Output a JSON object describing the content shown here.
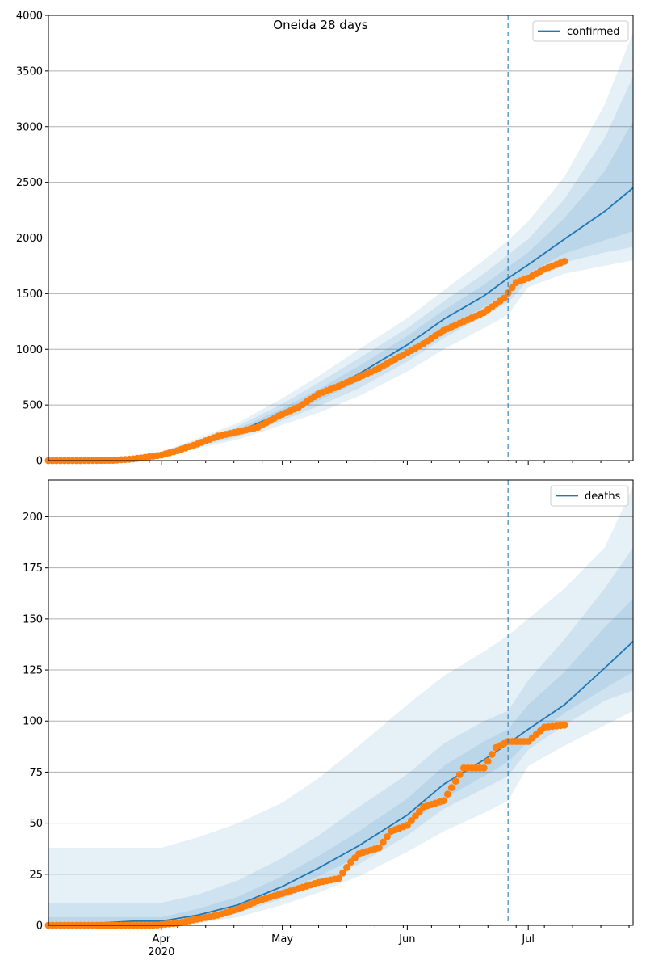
{
  "figure": {
    "title": "Oneida 28 days"
  },
  "colors": {
    "model_line": "#1f77b4",
    "observed": "#ff7f0e",
    "band": "#1f77b4",
    "grid": "#b0b0b0",
    "vline": "#1f77b4"
  },
  "xaxis": {
    "month_labels": [
      {
        "label": "Apr",
        "sub": "2020",
        "date": "2020-04-01"
      },
      {
        "label": "May",
        "sub": "",
        "date": "2020-05-01"
      },
      {
        "label": "Jun",
        "sub": "",
        "date": "2020-06-01"
      },
      {
        "label": "Jul",
        "sub": "",
        "date": "2020-07-01"
      }
    ]
  },
  "chart_data": [
    {
      "type": "line",
      "name": "confirmed-panel",
      "legend": "confirmed",
      "legend_position": "top-right",
      "grid": "y",
      "xlim": [
        "2020-03-04",
        "2020-07-27"
      ],
      "ylim": [
        0,
        4000
      ],
      "yticks": [
        "0",
        "500",
        "1000",
        "1500",
        "2000",
        "2500",
        "3000",
        "3500",
        "4000"
      ],
      "forecast_start": "2020-06-26",
      "model_x": [
        "2020-03-04",
        "2020-03-15",
        "2020-03-25",
        "2020-04-01",
        "2020-04-10",
        "2020-04-20",
        "2020-05-01",
        "2020-05-10",
        "2020-05-20",
        "2020-06-01",
        "2020-06-10",
        "2020-06-20",
        "2020-06-26",
        "2020-07-01",
        "2020-07-10",
        "2020-07-20",
        "2020-07-27"
      ],
      "model_y": [
        0,
        0,
        20,
        60,
        150,
        260,
        430,
        590,
        780,
        1040,
        1270,
        1480,
        1640,
        1760,
        1990,
        2240,
        2450
      ],
      "bands": [
        {
          "upper": [
            0,
            0,
            30,
            80,
            200,
            340,
            560,
            760,
            1000,
            1280,
            1530,
            1800,
            1980,
            2150,
            2550,
            3200,
            3850
          ],
          "lower": [
            0,
            0,
            10,
            40,
            110,
            190,
            320,
            430,
            580,
            800,
            1000,
            1190,
            1310,
            1560,
            1680,
            1750,
            1800
          ]
        },
        {
          "upper": [
            0,
            0,
            26,
            72,
            180,
            310,
            510,
            700,
            920,
            1190,
            1430,
            1680,
            1850,
            1990,
            2350,
            2900,
            3450
          ],
          "lower": [
            0,
            0,
            13,
            46,
            125,
            215,
            360,
            490,
            650,
            890,
            1100,
            1300,
            1420,
            1620,
            1780,
            1870,
            1920
          ]
        },
        {
          "upper": [
            0,
            0,
            23,
            66,
            165,
            285,
            470,
            640,
            850,
            1120,
            1350,
            1580,
            1740,
            1870,
            2180,
            2600,
            3050
          ],
          "lower": [
            0,
            0,
            16,
            52,
            135,
            235,
            390,
            540,
            710,
            960,
            1180,
            1380,
            1520,
            1680,
            1860,
            1980,
            2060
          ]
        }
      ],
      "observed_x": [
        "2020-03-04",
        "2020-03-12",
        "2020-03-20",
        "2020-03-25",
        "2020-03-28",
        "2020-04-01",
        "2020-04-05",
        "2020-04-10",
        "2020-04-15",
        "2020-04-20",
        "2020-04-25",
        "2020-04-30",
        "2020-05-05",
        "2020-05-10",
        "2020-05-15",
        "2020-05-20",
        "2020-05-25",
        "2020-05-31",
        "2020-06-05",
        "2020-06-10",
        "2020-06-15",
        "2020-06-20",
        "2020-06-25",
        "2020-06-28",
        "2020-07-01",
        "2020-07-05",
        "2020-07-10"
      ],
      "observed_y": [
        0,
        0,
        3,
        15,
        30,
        50,
        90,
        150,
        220,
        260,
        300,
        400,
        480,
        600,
        670,
        750,
        830,
        950,
        1050,
        1170,
        1250,
        1330,
        1460,
        1600,
        1640,
        1720,
        1790
      ]
    },
    {
      "type": "line",
      "name": "deaths-panel",
      "legend": "deaths",
      "legend_position": "top-right",
      "grid": "y",
      "xlim": [
        "2020-03-04",
        "2020-07-27"
      ],
      "ylim": [
        0,
        218
      ],
      "yticks": [
        "0",
        "25",
        "50",
        "75",
        "100",
        "125",
        "150",
        "175",
        "200"
      ],
      "forecast_start": "2020-06-26",
      "model_x": [
        "2020-03-04",
        "2020-03-15",
        "2020-03-25",
        "2020-04-01",
        "2020-04-10",
        "2020-04-20",
        "2020-05-01",
        "2020-05-10",
        "2020-05-20",
        "2020-06-01",
        "2020-06-10",
        "2020-06-20",
        "2020-06-26",
        "2020-07-01",
        "2020-07-10",
        "2020-07-20",
        "2020-07-27"
      ],
      "model_y": [
        0,
        1,
        2,
        2,
        5,
        10,
        19,
        28,
        39,
        54,
        69,
        81,
        89,
        96,
        108,
        126,
        139
      ],
      "bands": [
        {
          "upper": [
            38,
            38,
            38,
            38,
            43,
            50,
            60,
            72,
            88,
            108,
            122,
            134,
            142,
            150,
            165,
            185,
            215
          ],
          "lower": [
            0,
            0,
            0,
            0,
            1,
            4,
            10,
            16,
            24,
            36,
            46,
            55,
            61,
            78,
            88,
            98,
            105
          ]
        },
        {
          "upper": [
            11,
            11,
            11,
            11,
            15,
            22,
            33,
            44,
            58,
            74,
            89,
            100,
            105,
            120,
            140,
            165,
            185
          ],
          "lower": [
            0,
            0,
            0,
            0,
            2,
            6,
            13,
            20,
            30,
            44,
            57,
            67,
            73,
            86,
            98,
            110,
            115
          ]
        },
        {
          "upper": [
            4,
            4,
            4,
            4,
            8,
            14,
            24,
            34,
            46,
            62,
            78,
            90,
            96,
            108,
            124,
            146,
            160
          ],
          "lower": [
            0,
            0,
            0,
            0,
            3,
            8,
            16,
            24,
            34,
            49,
            62,
            73,
            80,
            90,
            104,
            116,
            124
          ]
        }
      ],
      "observed_x": [
        "2020-03-04",
        "2020-03-30",
        "2020-04-05",
        "2020-04-10",
        "2020-04-15",
        "2020-04-20",
        "2020-04-25",
        "2020-04-30",
        "2020-05-05",
        "2020-05-10",
        "2020-05-15",
        "2020-05-18",
        "2020-05-20",
        "2020-05-25",
        "2020-05-28",
        "2020-06-01",
        "2020-06-05",
        "2020-06-10",
        "2020-06-15",
        "2020-06-20",
        "2020-06-23",
        "2020-06-26",
        "2020-07-01",
        "2020-07-05",
        "2020-07-10"
      ],
      "observed_y": [
        0,
        0,
        1,
        3,
        5,
        8,
        12,
        15,
        18,
        21,
        23,
        31,
        35,
        38,
        46,
        49,
        58,
        61,
        77,
        77,
        87,
        90,
        90,
        97,
        98
      ]
    }
  ]
}
